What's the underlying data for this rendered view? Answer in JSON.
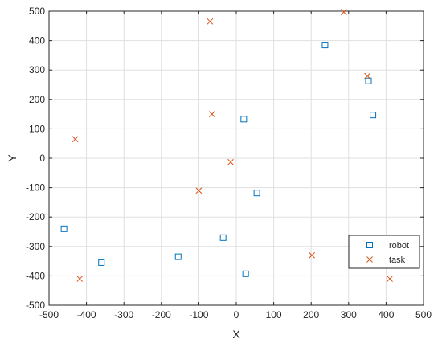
{
  "chart_data": {
    "type": "scatter",
    "title": "",
    "xlabel": "X",
    "ylabel": "Y",
    "xlim": [
      -500,
      500
    ],
    "ylim": [
      -500,
      500
    ],
    "xticks": [
      -500,
      -400,
      -300,
      -200,
      -100,
      0,
      100,
      200,
      300,
      400,
      500
    ],
    "yticks": [
      -500,
      -400,
      -300,
      -200,
      -100,
      0,
      100,
      200,
      300,
      400,
      500
    ],
    "grid": true,
    "legend_position": "bottom-right",
    "series": [
      {
        "name": "robot",
        "marker": "square",
        "color": "#0072BD",
        "x": [
          237,
          353,
          365,
          20,
          55,
          -460,
          -360,
          -155,
          -35,
          25
        ],
        "y": [
          385,
          263,
          147,
          133,
          -118,
          -240,
          -355,
          -335,
          -270,
          -393
        ]
      },
      {
        "name": "task",
        "marker": "x",
        "color": "#D95319",
        "x": [
          287,
          350,
          -70,
          -65,
          -430,
          -15,
          -100,
          202,
          -418,
          410
        ],
        "y": [
          497,
          280,
          465,
          150,
          65,
          -13,
          -110,
          -330,
          -410,
          -410
        ]
      }
    ]
  }
}
